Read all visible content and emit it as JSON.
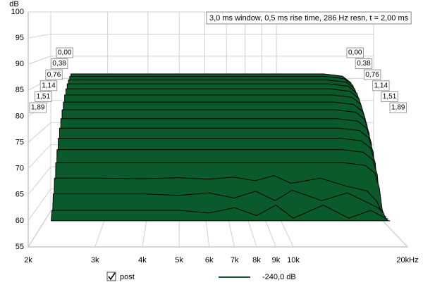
{
  "chart_data": {
    "type": "waterfall",
    "ylabel": "dB",
    "annotation": "3,0 ms window, 0,5 ms rise time,  286 Hz resn, t = 2,00 ms",
    "color": "#0b5a2b",
    "ylim": [
      55,
      100
    ],
    "yticks": [
      55,
      60,
      65,
      70,
      75,
      80,
      85,
      90,
      95,
      100
    ],
    "xlim": [
      2000,
      20000
    ],
    "log_x": true,
    "xticks": [
      {
        "value": 2000,
        "label": "2k"
      },
      {
        "value": 3000,
        "label": "3k"
      },
      {
        "value": 4000,
        "label": "4k"
      },
      {
        "value": 5000,
        "label": "5k"
      },
      {
        "value": 6000,
        "label": "6k"
      },
      {
        "value": 7000,
        "label": "7k"
      },
      {
        "value": 8000,
        "label": "8k"
      },
      {
        "value": 9000,
        "label": "9k"
      },
      {
        "value": 10000,
        "label": "10k"
      },
      {
        "value": 20000,
        "label": "20kHz"
      }
    ],
    "grid": true,
    "times": [
      {
        "value": 0,
        "label": "0,00"
      },
      null,
      null,
      {
        "value": 0.38,
        "label": "0,38"
      },
      null,
      null,
      {
        "value": 0.76,
        "label": "0,76"
      },
      null,
      null,
      {
        "value": 1.14,
        "label": "1,14"
      },
      null,
      null,
      {
        "value": 1.51,
        "label": "1,51"
      },
      null,
      null,
      {
        "value": 1.89,
        "label": "1,89"
      }
    ],
    "x": [
      2300,
      2310,
      3000,
      4000,
      5000,
      6000,
      7000,
      8000,
      9000,
      10000,
      12000,
      14000,
      16000,
      17000,
      17500,
      17800,
      18000
    ],
    "series": [
      {
        "values": [
          60,
          86,
          86,
          86,
          86,
          86,
          86,
          86,
          86,
          86,
          86,
          86,
          85.5,
          84,
          81,
          74,
          60
        ]
      },
      {
        "values": [
          60,
          85.6,
          85.6,
          85.6,
          85.6,
          85.6,
          85.6,
          85.6,
          85.6,
          85.6,
          85.6,
          85.6,
          85.1,
          83.6,
          80.6,
          73.6,
          60
        ]
      },
      {
        "values": [
          60,
          85,
          85,
          85,
          85,
          85,
          85,
          85,
          85,
          85,
          85,
          85,
          84.5,
          83,
          80,
          73,
          60
        ]
      },
      {
        "values": [
          60,
          84.3,
          84.3,
          84.3,
          84.3,
          84.3,
          84.3,
          84.3,
          84.3,
          84.3,
          84.3,
          84.3,
          83.8,
          82.3,
          79.3,
          72.3,
          60
        ]
      },
      {
        "values": [
          60,
          83.4,
          83.4,
          83.4,
          83.4,
          83.4,
          83.4,
          83.4,
          83.4,
          83.4,
          83.4,
          83.4,
          82.9,
          81.4,
          78.4,
          71.4,
          60
        ]
      },
      {
        "values": [
          60,
          82.3,
          82.3,
          82.3,
          82.3,
          82.3,
          82.3,
          82.3,
          82.3,
          82.3,
          82.3,
          82.3,
          81.8,
          80.3,
          77.3,
          70.3,
          60
        ]
      },
      {
        "values": [
          60,
          81,
          81,
          81,
          81,
          81,
          81,
          81,
          81,
          81,
          81,
          81,
          80.5,
          79,
          76,
          69,
          60
        ]
      },
      {
        "values": [
          60,
          79.6,
          79.6,
          79.6,
          79.6,
          79.6,
          79.6,
          79.6,
          79.6,
          79.6,
          79.6,
          79.6,
          79.1,
          77.6,
          74.6,
          67.6,
          60
        ]
      },
      {
        "values": [
          60,
          78,
          78,
          78,
          78,
          78,
          78,
          78,
          78,
          78,
          78,
          78,
          77.5,
          76,
          73,
          66,
          60
        ]
      },
      {
        "values": [
          60,
          76.3,
          76.3,
          76.3,
          76.3,
          76.3,
          76.3,
          76.3,
          76.3,
          76.3,
          76.3,
          76.3,
          75.8,
          74.3,
          71.3,
          64.3,
          60
        ]
      },
      {
        "values": [
          60,
          74.5,
          74.5,
          74.5,
          74.5,
          74.5,
          74.5,
          74.5,
          74.5,
          74.5,
          74.5,
          74.5,
          74,
          72.5,
          69.5,
          62.5,
          60
        ]
      },
      {
        "values": [
          60,
          72.5,
          72.5,
          72.5,
          72.5,
          72.5,
          72.5,
          72.5,
          72.5,
          72.5,
          72.5,
          72.5,
          72,
          70.5,
          67.5,
          61,
          60
        ]
      },
      {
        "values": [
          60,
          70.2,
          70.2,
          70.2,
          70.2,
          70.2,
          70.2,
          70.2,
          70.2,
          70.2,
          70.2,
          70.2,
          69.7,
          68.2,
          65.2,
          61,
          60
        ]
      },
      {
        "values": [
          60,
          67.5,
          67.5,
          67.4,
          67.6,
          67.3,
          67.7,
          67,
          68,
          66.5,
          67.5,
          66,
          65,
          63,
          61,
          60,
          60
        ]
      },
      {
        "values": [
          60,
          64.8,
          64.8,
          64.8,
          64.5,
          65,
          64,
          65.3,
          63.5,
          65.5,
          63.5,
          65,
          63,
          62,
          61,
          60,
          60
        ]
      },
      {
        "values": [
          60,
          62,
          62,
          62,
          62,
          61.5,
          62.5,
          61,
          63,
          60.5,
          63,
          60.5,
          62,
          61,
          60.5,
          60,
          60
        ]
      }
    ],
    "legend": {
      "name": "post",
      "value_label": "-240,0 dB"
    }
  }
}
